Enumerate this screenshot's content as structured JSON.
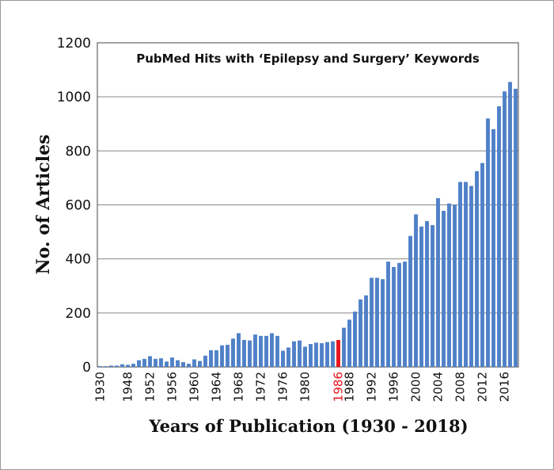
{
  "chart_data": {
    "type": "bar",
    "title": "PubMed Hits with ‘Epilepsy and Surgery’ Keywords",
    "xlabel": "Years of Publication (1930 - 2018)",
    "ylabel": "No. of Articles",
    "categories": [
      "1930",
      null,
      null,
      null,
      null,
      "1948",
      null,
      null,
      null,
      "1952",
      null,
      null,
      null,
      "1956",
      null,
      null,
      null,
      "1960",
      null,
      null,
      null,
      "1964",
      null,
      null,
      null,
      "1968",
      null,
      null,
      null,
      "1972",
      null,
      null,
      null,
      "1976",
      null,
      null,
      null,
      "1980",
      null,
      null,
      null,
      null,
      null,
      "1986",
      null,
      "1988",
      null,
      null,
      null,
      "1992",
      null,
      null,
      null,
      "1996",
      null,
      null,
      null,
      "2000",
      null,
      null,
      null,
      "2004",
      null,
      null,
      null,
      "2008",
      null,
      null,
      null,
      "2012",
      null,
      null,
      null,
      "2016",
      null,
      null
    ],
    "values": [
      3,
      3,
      5,
      5,
      10,
      8,
      12,
      25,
      30,
      40,
      30,
      32,
      20,
      35,
      25,
      18,
      12,
      28,
      22,
      42,
      62,
      62,
      80,
      82,
      105,
      125,
      100,
      98,
      120,
      115,
      115,
      125,
      115,
      60,
      72,
      95,
      98,
      75,
      85,
      90,
      88,
      92,
      95,
      100,
      145,
      175,
      205,
      250,
      265,
      330,
      330,
      325,
      390,
      370,
      385,
      390,
      485,
      565,
      520,
      540,
      525,
      625,
      578,
      605,
      600,
      685,
      685,
      670,
      725,
      755,
      920,
      880,
      965,
      1020,
      1055,
      1030
    ],
    "color": "#4f81c7",
    "highlight": {
      "category": "1986",
      "color": "#e8151b"
    },
    "ylim": [
      0,
      1200
    ],
    "yticks": [
      0,
      200,
      400,
      600,
      800,
      1000,
      1200
    ],
    "grid": true
  }
}
